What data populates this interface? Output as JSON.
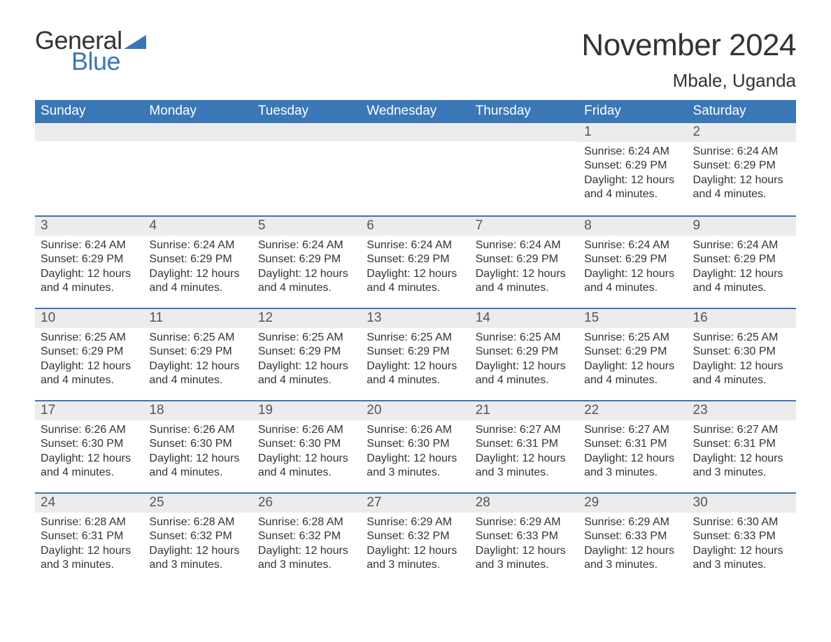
{
  "brand": {
    "word1": "General",
    "word2": "Blue",
    "word1_color": "#333333",
    "word2_color": "#3a77b7",
    "triangle_color": "#3a77b7"
  },
  "title": "November 2024",
  "location": "Mbale, Uganda",
  "colors": {
    "header_bg": "#3a77b7",
    "header_text": "#ffffff",
    "daybar_bg": "#ececec",
    "week_border": "#3a77b7",
    "body_text": "#333333",
    "page_bg": "#ffffff"
  },
  "typography": {
    "title_fontsize": 44,
    "location_fontsize": 26,
    "header_fontsize": 19,
    "daynum_fontsize": 19,
    "info_fontsize": 16,
    "font_family": "Arial"
  },
  "day_headers": [
    "Sunday",
    "Monday",
    "Tuesday",
    "Wednesday",
    "Thursday",
    "Friday",
    "Saturday"
  ],
  "weeks": [
    [
      {
        "blank": true
      },
      {
        "blank": true
      },
      {
        "blank": true
      },
      {
        "blank": true
      },
      {
        "blank": true
      },
      {
        "num": "1",
        "sunrise": "Sunrise: 6:24 AM",
        "sunset": "Sunset: 6:29 PM",
        "daylight": "Daylight: 12 hours and 4 minutes."
      },
      {
        "num": "2",
        "sunrise": "Sunrise: 6:24 AM",
        "sunset": "Sunset: 6:29 PM",
        "daylight": "Daylight: 12 hours and 4 minutes."
      }
    ],
    [
      {
        "num": "3",
        "sunrise": "Sunrise: 6:24 AM",
        "sunset": "Sunset: 6:29 PM",
        "daylight": "Daylight: 12 hours and 4 minutes."
      },
      {
        "num": "4",
        "sunrise": "Sunrise: 6:24 AM",
        "sunset": "Sunset: 6:29 PM",
        "daylight": "Daylight: 12 hours and 4 minutes."
      },
      {
        "num": "5",
        "sunrise": "Sunrise: 6:24 AM",
        "sunset": "Sunset: 6:29 PM",
        "daylight": "Daylight: 12 hours and 4 minutes."
      },
      {
        "num": "6",
        "sunrise": "Sunrise: 6:24 AM",
        "sunset": "Sunset: 6:29 PM",
        "daylight": "Daylight: 12 hours and 4 minutes."
      },
      {
        "num": "7",
        "sunrise": "Sunrise: 6:24 AM",
        "sunset": "Sunset: 6:29 PM",
        "daylight": "Daylight: 12 hours and 4 minutes."
      },
      {
        "num": "8",
        "sunrise": "Sunrise: 6:24 AM",
        "sunset": "Sunset: 6:29 PM",
        "daylight": "Daylight: 12 hours and 4 minutes."
      },
      {
        "num": "9",
        "sunrise": "Sunrise: 6:24 AM",
        "sunset": "Sunset: 6:29 PM",
        "daylight": "Daylight: 12 hours and 4 minutes."
      }
    ],
    [
      {
        "num": "10",
        "sunrise": "Sunrise: 6:25 AM",
        "sunset": "Sunset: 6:29 PM",
        "daylight": "Daylight: 12 hours and 4 minutes."
      },
      {
        "num": "11",
        "sunrise": "Sunrise: 6:25 AM",
        "sunset": "Sunset: 6:29 PM",
        "daylight": "Daylight: 12 hours and 4 minutes."
      },
      {
        "num": "12",
        "sunrise": "Sunrise: 6:25 AM",
        "sunset": "Sunset: 6:29 PM",
        "daylight": "Daylight: 12 hours and 4 minutes."
      },
      {
        "num": "13",
        "sunrise": "Sunrise: 6:25 AM",
        "sunset": "Sunset: 6:29 PM",
        "daylight": "Daylight: 12 hours and 4 minutes."
      },
      {
        "num": "14",
        "sunrise": "Sunrise: 6:25 AM",
        "sunset": "Sunset: 6:29 PM",
        "daylight": "Daylight: 12 hours and 4 minutes."
      },
      {
        "num": "15",
        "sunrise": "Sunrise: 6:25 AM",
        "sunset": "Sunset: 6:29 PM",
        "daylight": "Daylight: 12 hours and 4 minutes."
      },
      {
        "num": "16",
        "sunrise": "Sunrise: 6:25 AM",
        "sunset": "Sunset: 6:30 PM",
        "daylight": "Daylight: 12 hours and 4 minutes."
      }
    ],
    [
      {
        "num": "17",
        "sunrise": "Sunrise: 6:26 AM",
        "sunset": "Sunset: 6:30 PM",
        "daylight": "Daylight: 12 hours and 4 minutes."
      },
      {
        "num": "18",
        "sunrise": "Sunrise: 6:26 AM",
        "sunset": "Sunset: 6:30 PM",
        "daylight": "Daylight: 12 hours and 4 minutes."
      },
      {
        "num": "19",
        "sunrise": "Sunrise: 6:26 AM",
        "sunset": "Sunset: 6:30 PM",
        "daylight": "Daylight: 12 hours and 4 minutes."
      },
      {
        "num": "20",
        "sunrise": "Sunrise: 6:26 AM",
        "sunset": "Sunset: 6:30 PM",
        "daylight": "Daylight: 12 hours and 3 minutes."
      },
      {
        "num": "21",
        "sunrise": "Sunrise: 6:27 AM",
        "sunset": "Sunset: 6:31 PM",
        "daylight": "Daylight: 12 hours and 3 minutes."
      },
      {
        "num": "22",
        "sunrise": "Sunrise: 6:27 AM",
        "sunset": "Sunset: 6:31 PM",
        "daylight": "Daylight: 12 hours and 3 minutes."
      },
      {
        "num": "23",
        "sunrise": "Sunrise: 6:27 AM",
        "sunset": "Sunset: 6:31 PM",
        "daylight": "Daylight: 12 hours and 3 minutes."
      }
    ],
    [
      {
        "num": "24",
        "sunrise": "Sunrise: 6:28 AM",
        "sunset": "Sunset: 6:31 PM",
        "daylight": "Daylight: 12 hours and 3 minutes."
      },
      {
        "num": "25",
        "sunrise": "Sunrise: 6:28 AM",
        "sunset": "Sunset: 6:32 PM",
        "daylight": "Daylight: 12 hours and 3 minutes."
      },
      {
        "num": "26",
        "sunrise": "Sunrise: 6:28 AM",
        "sunset": "Sunset: 6:32 PM",
        "daylight": "Daylight: 12 hours and 3 minutes."
      },
      {
        "num": "27",
        "sunrise": "Sunrise: 6:29 AM",
        "sunset": "Sunset: 6:32 PM",
        "daylight": "Daylight: 12 hours and 3 minutes."
      },
      {
        "num": "28",
        "sunrise": "Sunrise: 6:29 AM",
        "sunset": "Sunset: 6:33 PM",
        "daylight": "Daylight: 12 hours and 3 minutes."
      },
      {
        "num": "29",
        "sunrise": "Sunrise: 6:29 AM",
        "sunset": "Sunset: 6:33 PM",
        "daylight": "Daylight: 12 hours and 3 minutes."
      },
      {
        "num": "30",
        "sunrise": "Sunrise: 6:30 AM",
        "sunset": "Sunset: 6:33 PM",
        "daylight": "Daylight: 12 hours and 3 minutes."
      }
    ]
  ]
}
